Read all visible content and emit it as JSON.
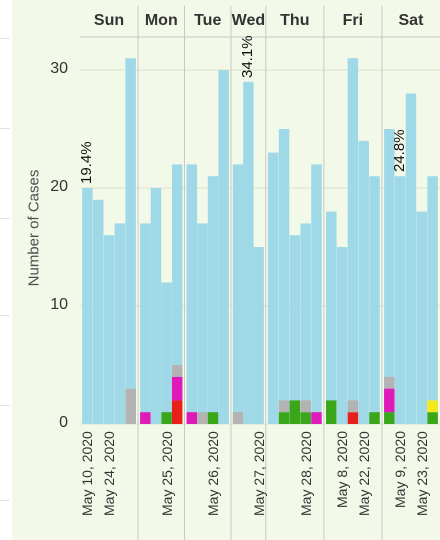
{
  "chart_data": {
    "type": "bar",
    "stacked": true,
    "ylabel": "Number of Cases",
    "yticks": [
      0,
      10,
      20,
      30
    ],
    "ylim": [
      0,
      33
    ],
    "colors": {
      "base": "#9fd9e8",
      "gray": "#b3b3b3",
      "magenta": "#e01ab8",
      "red": "#e8201a",
      "green": "#3aa61a",
      "yellow": "#f5e91a"
    },
    "groups": [
      {
        "label": "Sun",
        "bars": [
          {
            "total": 20,
            "segments": []
          },
          {
            "total": 19,
            "segments": []
          },
          {
            "total": 16,
            "segments": []
          },
          {
            "total": 17,
            "segments": []
          },
          {
            "total": 31,
            "segments": [
              [
                "gray",
                3
              ]
            ]
          }
        ]
      },
      {
        "label": "Mon",
        "bars": [
          {
            "total": 17,
            "segments": [
              [
                "magenta",
                1
              ]
            ]
          },
          {
            "total": 20,
            "segments": []
          },
          {
            "total": 12,
            "segments": [
              [
                "green",
                1
              ]
            ]
          },
          {
            "total": 22,
            "segments": [
              [
                "red",
                2
              ],
              [
                "magenta",
                2
              ],
              [
                "gray",
                1
              ]
            ]
          }
        ]
      },
      {
        "label": "Tue",
        "bars": [
          {
            "total": 22,
            "segments": [
              [
                "magenta",
                1
              ]
            ]
          },
          {
            "total": 17,
            "segments": [
              [
                "gray",
                1
              ]
            ]
          },
          {
            "total": 21,
            "segments": [
              [
                "green",
                1
              ]
            ]
          },
          {
            "total": 30,
            "segments": []
          }
        ]
      },
      {
        "label": "Wed",
        "bars": [
          {
            "total": 22,
            "segments": [
              [
                "gray",
                1
              ]
            ]
          },
          {
            "total": 29,
            "segments": []
          },
          {
            "total": 15,
            "segments": []
          }
        ]
      },
      {
        "label": "Thu",
        "bars": [
          {
            "total": 23,
            "segments": []
          },
          {
            "total": 25,
            "segments": [
              [
                "green",
                1
              ],
              [
                "gray",
                1
              ]
            ]
          },
          {
            "total": 16,
            "segments": [
              [
                "green",
                2
              ]
            ]
          },
          {
            "total": 17,
            "segments": [
              [
                "green",
                1
              ],
              [
                "gray",
                1
              ]
            ]
          },
          {
            "total": 22,
            "segments": [
              [
                "magenta",
                1
              ]
            ]
          }
        ]
      },
      {
        "label": "Fri",
        "bars": [
          {
            "total": 18,
            "segments": [
              [
                "green",
                2
              ]
            ]
          },
          {
            "total": 15,
            "segments": []
          },
          {
            "total": 31,
            "segments": [
              [
                "red",
                1
              ],
              [
                "gray",
                1
              ]
            ]
          },
          {
            "total": 24,
            "segments": []
          },
          {
            "total": 21,
            "segments": [
              [
                "green",
                1
              ]
            ]
          }
        ]
      },
      {
        "label": "Sat",
        "bars": [
          {
            "total": 25,
            "segments": [
              [
                "green",
                1
              ],
              [
                "magenta",
                2
              ],
              [
                "gray",
                1
              ]
            ]
          },
          {
            "total": 21,
            "segments": []
          },
          {
            "total": 28,
            "segments": []
          },
          {
            "total": 18,
            "segments": []
          },
          {
            "total": 21,
            "segments": [
              [
                "green",
                1
              ],
              [
                "yellow",
                1
              ]
            ]
          }
        ]
      }
    ],
    "x_labels": [
      {
        "text": "May 10, 2020",
        "group": 0,
        "bar": 0
      },
      {
        "text": "May 24, 2020",
        "group": 0,
        "bar": 2
      },
      {
        "text": "May 25, 2020",
        "group": 1,
        "bar": 2
      },
      {
        "text": "May 26, 2020",
        "group": 2,
        "bar": 2
      },
      {
        "text": "May 27, 2020",
        "group": 3,
        "bar": 2
      },
      {
        "text": "May 28, 2020",
        "group": 4,
        "bar": 3
      },
      {
        "text": "May 8, 2020",
        "group": 5,
        "bar": 1
      },
      {
        "text": "May 22, 2020",
        "group": 5,
        "bar": 3
      },
      {
        "text": "May 9, 2020",
        "group": 6,
        "bar": 1
      },
      {
        "text": "May 23, 2020",
        "group": 6,
        "bar": 3
      }
    ],
    "annotations": [
      {
        "text": "19.4%",
        "group": 0,
        "bar": 0
      },
      {
        "text": "34.1%",
        "group": 3,
        "bar": 1
      },
      {
        "text": "24.8%",
        "group": 6,
        "bar": 1
      }
    ]
  }
}
